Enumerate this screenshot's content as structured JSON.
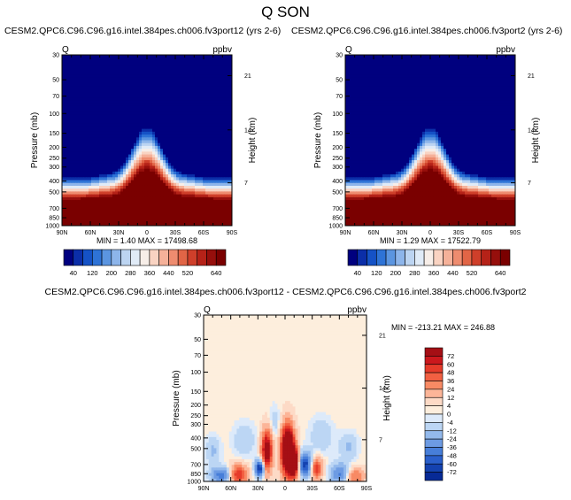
{
  "page": {
    "title": "Q SON"
  },
  "chart_data": [
    {
      "type": "heatmap",
      "title": "CESM2.QPC6.C96.C96.g16.intel.384pes.ch006.fv3port12 (yrs 2-6)",
      "left_label": "Q",
      "right_label": "ppbv",
      "ylabel": "Pressure (mb)",
      "ylabel_right": "Height (km)",
      "x_ticks": [
        "90N",
        "60N",
        "30N",
        "0",
        "30S",
        "60S",
        "90S"
      ],
      "y_ticks": [
        "30",
        "50",
        "70",
        "100",
        "150",
        "200",
        "250",
        "300",
        "400",
        "500",
        "700",
        "850",
        "1000"
      ],
      "y_ticks_right": [
        "21",
        "14",
        "7"
      ],
      "stats": "MIN =   1.40   MAX = 17498.68",
      "colorbar": {
        "orientation": "horizontal",
        "levels": [
          0,
          40,
          80,
          120,
          160,
          200,
          240,
          280,
          320,
          360,
          400,
          440,
          480,
          520,
          560,
          600,
          640,
          680
        ],
        "labels": [
          "40",
          "120",
          "200",
          "280",
          "360",
          "440",
          "520",
          "640"
        ],
        "colors": [
          "#00007f",
          "#0b2ea8",
          "#1552c6",
          "#2e73d6",
          "#5b95e0",
          "#8db5ea",
          "#bcd4f1",
          "#e0ebf7",
          "#f7eee8",
          "#f9d3c2",
          "#f5b199",
          "#ee8c6f",
          "#e16546",
          "#cf3f2a",
          "#b52218",
          "#960f0c",
          "#7a0000"
        ]
      }
    },
    {
      "type": "heatmap",
      "title": "CESM2.QPC6.C96.C96.g16.intel.384pes.ch006.fv3port2 (yrs 2-6)",
      "left_label": "Q",
      "right_label": "ppbv",
      "ylabel": "Pressure (mb)",
      "ylabel_right": "Height (km)",
      "x_ticks": [
        "90N",
        "60N",
        "30N",
        "0",
        "30S",
        "60S",
        "90S"
      ],
      "y_ticks": [
        "30",
        "50",
        "70",
        "100",
        "150",
        "200",
        "250",
        "300",
        "400",
        "500",
        "700",
        "850",
        "1000"
      ],
      "y_ticks_right": [
        "21",
        "14",
        "7"
      ],
      "stats": "MIN =   1.29   MAX = 17522.79",
      "colorbar": {
        "orientation": "horizontal",
        "levels": [
          0,
          40,
          80,
          120,
          160,
          200,
          240,
          280,
          320,
          360,
          400,
          440,
          480,
          520,
          560,
          600,
          640,
          680
        ],
        "labels": [
          "40",
          "120",
          "200",
          "280",
          "360",
          "440",
          "520",
          "640"
        ],
        "colors": [
          "#00007f",
          "#0b2ea8",
          "#1552c6",
          "#2e73d6",
          "#5b95e0",
          "#8db5ea",
          "#bcd4f1",
          "#e0ebf7",
          "#f7eee8",
          "#f9d3c2",
          "#f5b199",
          "#ee8c6f",
          "#e16546",
          "#cf3f2a",
          "#b52218",
          "#960f0c",
          "#7a0000"
        ]
      }
    },
    {
      "type": "heatmap",
      "title": "CESM2.QPC6.C96.C96.g16.intel.384pes.ch006.fv3port12 - CESM2.QPC6.C96.C96.g16.intel.384pes.ch006.fv3port2",
      "left_label": "Q",
      "right_label": "ppbv",
      "ylabel": "Pressure (mb)",
      "ylabel_right": "Height (km)",
      "x_ticks": [
        "90N",
        "60N",
        "30N",
        "0",
        "30S",
        "60S",
        "90S"
      ],
      "y_ticks": [
        "30",
        "50",
        "70",
        "100",
        "150",
        "200",
        "250",
        "300",
        "400",
        "500",
        "700",
        "850",
        "1000"
      ],
      "y_ticks_right": [
        "21",
        "14",
        "7"
      ],
      "stats": "MIN = -213.21   MAX = 246.88",
      "colorbar": {
        "orientation": "vertical",
        "labels": [
          "72",
          "60",
          "48",
          "36",
          "24",
          "12",
          "4",
          "0",
          "-4",
          "-12",
          "-24",
          "-36",
          "-48",
          "-60",
          "-72"
        ],
        "colors": [
          "#a50f15",
          "#cb181d",
          "#e63b2a",
          "#f26042",
          "#f88a64",
          "#fcb598",
          "#fddac6",
          "#fdeedd",
          "#ddeafa",
          "#bcd6f4",
          "#93b9ec",
          "#6d9be3",
          "#477ed9",
          "#2a5fcb",
          "#1442b0",
          "#072a96"
        ]
      }
    }
  ]
}
